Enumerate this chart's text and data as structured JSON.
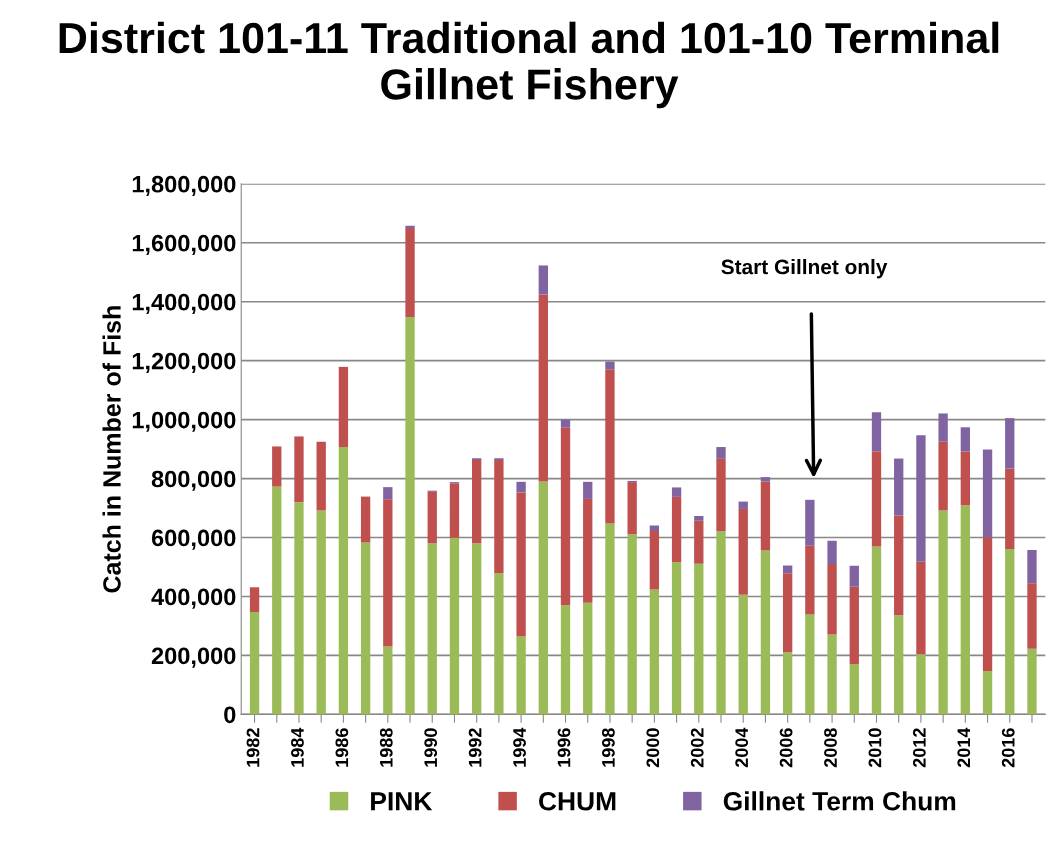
{
  "chart_data": {
    "type": "bar",
    "stacked": true,
    "title": "District 101-11 Traditional and 101-10 Terminal Gillnet Fishery",
    "ylabel": "Catch in Number of Fish",
    "categories": [
      "1982",
      null,
      "1984",
      null,
      "1986",
      null,
      "1988",
      null,
      "1990",
      null,
      "1992",
      null,
      "1994",
      null,
      "1996",
      null,
      "1998",
      null,
      "2000",
      null,
      "2002",
      null,
      "2004",
      null,
      "2006",
      null,
      "2008",
      null,
      "2010",
      null,
      "2012",
      null,
      "2014",
      null,
      "2016",
      null
    ],
    "series": [
      {
        "name": "PINK",
        "color": "#9bbb59",
        "values": [
          347000,
          773000,
          720000,
          692000,
          907000,
          583000,
          230000,
          1348000,
          581000,
          599000,
          581000,
          480000,
          264000,
          790000,
          370000,
          379000,
          648000,
          611000,
          424000,
          516000,
          511000,
          621000,
          406000,
          556000,
          211000,
          339000,
          271000,
          170000,
          570000,
          336000,
          204000,
          692000,
          709000,
          147000,
          561000,
          223000
        ]
      },
      {
        "name": "CHUM",
        "color": "#c0504d",
        "values": [
          84000,
          136000,
          223000,
          233000,
          272000,
          156000,
          500000,
          302000,
          174000,
          185000,
          282000,
          383000,
          489000,
          634000,
          603000,
          352000,
          523000,
          177000,
          198000,
          222000,
          146000,
          246000,
          291000,
          234000,
          268000,
          233000,
          239000,
          263000,
          323000,
          339000,
          314000,
          233000,
          183000,
          454000,
          273000,
          222000
        ]
      },
      {
        "name": "Gillnet Term Chum",
        "color": "#8064a2",
        "values": [
          null,
          null,
          null,
          null,
          null,
          null,
          41000,
          8000,
          4000,
          4000,
          6000,
          6000,
          36000,
          99000,
          27000,
          58000,
          26000,
          4000,
          19000,
          32000,
          16000,
          40000,
          25000,
          15000,
          26000,
          156000,
          79000,
          71000,
          132000,
          193000,
          429000,
          96000,
          82000,
          298000,
          171000,
          113000
        ]
      }
    ],
    "ylim": [
      0,
      1800000
    ],
    "yticks": [
      {
        "value": 0,
        "label": "0"
      },
      {
        "value": 200000,
        "label": "200,000"
      },
      {
        "value": 400000,
        "label": "400,000"
      },
      {
        "value": 600000,
        "label": "600,000"
      },
      {
        "value": 800000,
        "label": "800,000"
      },
      {
        "value": 1000000,
        "label": "1,000,000"
      },
      {
        "value": 1200000,
        "label": "1,200,000"
      },
      {
        "value": 1400000,
        "label": "1,400,000"
      },
      {
        "value": 1600000,
        "label": "1,600,000"
      },
      {
        "value": 1800000,
        "label": "1,800,000"
      }
    ],
    "grid": "y",
    "legend": "bottom",
    "annotations": [
      "Start Gillnet only"
    ]
  }
}
